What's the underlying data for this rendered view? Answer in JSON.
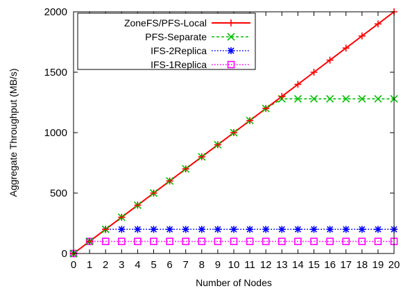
{
  "chart_data": {
    "type": "line",
    "xlabel": "Number of Nodes",
    "ylabel": "Aggregate Throughput (MB/s)",
    "xlim": [
      0,
      20
    ],
    "ylim": [
      0,
      2000
    ],
    "x": [
      0,
      1,
      2,
      3,
      4,
      5,
      6,
      7,
      8,
      9,
      10,
      11,
      12,
      13,
      14,
      15,
      16,
      17,
      18,
      19,
      20
    ],
    "x_tick_labels": [
      "0",
      "1",
      "2",
      "3",
      "4",
      "5",
      "6",
      "7",
      "8",
      "9",
      "10",
      "11",
      "12",
      "13",
      "14",
      "15",
      "16",
      "17",
      "18",
      "19",
      "20"
    ],
    "y_ticks": [
      0,
      500,
      1000,
      1500,
      2000
    ],
    "y_tick_labels": [
      "0",
      "500",
      "1000",
      "1500",
      "2000"
    ],
    "grid": false,
    "legend_position": "top-left",
    "series": [
      {
        "name": "ZoneFS/PFS-Local",
        "color": "#ff0000",
        "marker": "plus",
        "line_style": "solid",
        "values": [
          0,
          100,
          200,
          300,
          400,
          500,
          600,
          700,
          800,
          900,
          1000,
          1100,
          1200,
          1300,
          1400,
          1500,
          1600,
          1700,
          1800,
          1900,
          2000
        ]
      },
      {
        "name": "PFS-Separate",
        "color": "#00c000",
        "marker": "x",
        "line_style": "dashed",
        "values": [
          0,
          100,
          200,
          300,
          400,
          500,
          600,
          700,
          800,
          900,
          1000,
          1100,
          1200,
          1280,
          1280,
          1280,
          1280,
          1280,
          1280,
          1280,
          1280
        ]
      },
      {
        "name": "IFS-2Replica",
        "color": "#0000ff",
        "marker": "star",
        "line_style": "dotted",
        "values": [
          0,
          100,
          200,
          200,
          200,
          200,
          200,
          200,
          200,
          200,
          200,
          200,
          200,
          200,
          200,
          200,
          200,
          200,
          200,
          200,
          200
        ]
      },
      {
        "name": "IFS-1Replica",
        "color": "#ff00ff",
        "marker": "square",
        "line_style": "dotted",
        "values": [
          0,
          100,
          100,
          100,
          100,
          100,
          100,
          100,
          100,
          100,
          100,
          100,
          100,
          100,
          100,
          100,
          100,
          100,
          100,
          100,
          100
        ]
      }
    ]
  }
}
